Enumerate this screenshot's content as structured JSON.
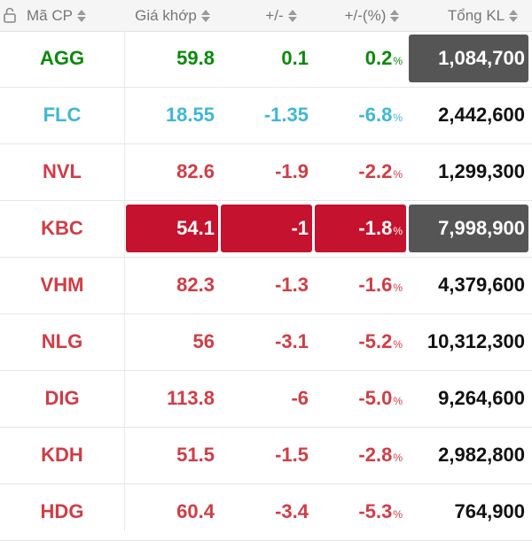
{
  "header": {
    "code": "Mã CP",
    "price": "Giá khớp",
    "change": "+/-",
    "percent": "+/-(%)",
    "volume": "Tổng KL"
  },
  "colors": {
    "up": "#0a8a0a",
    "ceiling_floor_cyan": "#3fb6d8",
    "down": "#d13c45",
    "highlight_red": "#c5122e",
    "highlight_gray": "#555555"
  },
  "rows": [
    {
      "code": "AGG",
      "price": "59.8",
      "change": "0.1",
      "percent": "0.2",
      "unit": "%",
      "volume": "1,084,700"
    },
    {
      "code": "FLC",
      "price": "18.55",
      "change": "-1.35",
      "percent": "-6.8",
      "unit": "%",
      "volume": "2,442,600"
    },
    {
      "code": "NVL",
      "price": "82.6",
      "change": "-1.9",
      "percent": "-2.2",
      "unit": "%",
      "volume": "1,299,300"
    },
    {
      "code": "KBC",
      "price": "54.1",
      "change": "-1",
      "percent": "-1.8",
      "unit": "%",
      "volume": "7,998,900"
    },
    {
      "code": "VHM",
      "price": "82.3",
      "change": "-1.3",
      "percent": "-1.6",
      "unit": "%",
      "volume": "4,379,600"
    },
    {
      "code": "NLG",
      "price": "56",
      "change": "-3.1",
      "percent": "-5.2",
      "unit": "%",
      "volume": "10,312,300"
    },
    {
      "code": "DIG",
      "price": "113.8",
      "change": "-6",
      "percent": "-5.0",
      "unit": "%",
      "volume": "9,264,600"
    },
    {
      "code": "KDH",
      "price": "51.5",
      "change": "-1.5",
      "percent": "-2.8",
      "unit": "%",
      "volume": "2,982,800"
    },
    {
      "code": "HDG",
      "price": "60.4",
      "change": "-3.4",
      "percent": "-5.3",
      "unit": "%",
      "volume": "764,900"
    }
  ]
}
